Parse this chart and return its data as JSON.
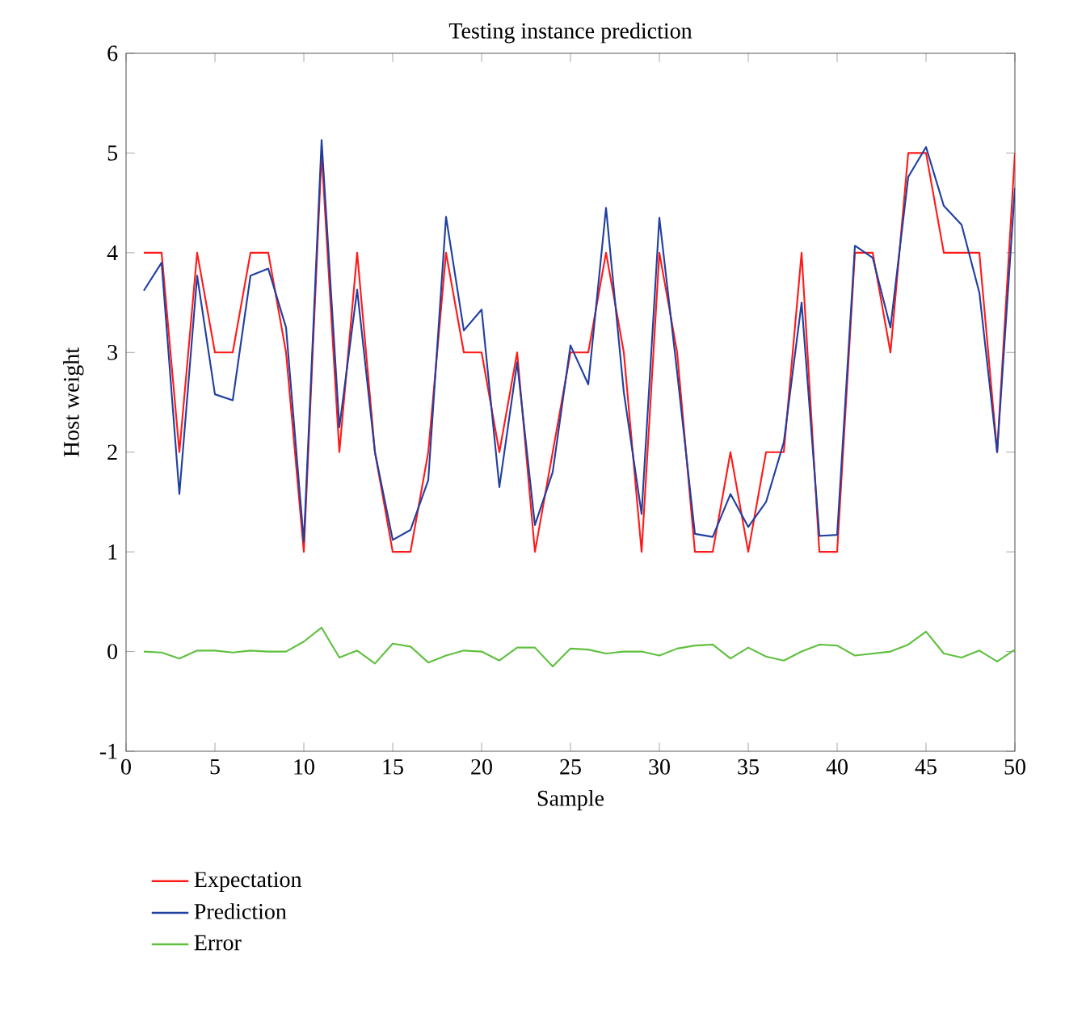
{
  "chart_data": {
    "type": "line",
    "title": "Testing instance prediction",
    "xlabel": "Sample",
    "ylabel": "Host weight",
    "x": [
      1,
      2,
      3,
      4,
      5,
      6,
      7,
      8,
      9,
      10,
      11,
      12,
      13,
      14,
      15,
      16,
      17,
      18,
      19,
      20,
      21,
      22,
      23,
      24,
      25,
      26,
      27,
      28,
      29,
      30,
      31,
      32,
      33,
      34,
      35,
      36,
      37,
      38,
      39,
      40,
      41,
      42,
      43,
      44,
      45,
      46,
      47,
      48,
      49,
      50
    ],
    "series": [
      {
        "name": "Expectation",
        "color": "#ff1a1a",
        "values": [
          4,
          4,
          2,
          4,
          3,
          3,
          4,
          4,
          3,
          1,
          5,
          2,
          4,
          2,
          1,
          1,
          2,
          4,
          3,
          3,
          2,
          3,
          1,
          2,
          3,
          3,
          4,
          3,
          1,
          4,
          3,
          1,
          1,
          2,
          1,
          2,
          2,
          4,
          1,
          1,
          4,
          4,
          3,
          5,
          5,
          4,
          4,
          4,
          2,
          5
        ]
      },
      {
        "name": "Prediction",
        "color": "#2040a0",
        "values": [
          3.62,
          3.9,
          1.58,
          3.77,
          2.58,
          2.52,
          3.77,
          3.84,
          3.25,
          1.1,
          5.13,
          2.25,
          3.63,
          2.0,
          1.12,
          1.22,
          1.72,
          4.36,
          3.22,
          3.43,
          1.65,
          2.9,
          1.27,
          1.8,
          3.07,
          2.68,
          4.45,
          2.6,
          1.38,
          4.35,
          2.8,
          1.18,
          1.15,
          1.58,
          1.25,
          1.5,
          2.1,
          3.5,
          1.16,
          1.17,
          4.07,
          3.95,
          3.25,
          4.76,
          5.06,
          4.47,
          4.28,
          3.6,
          2.0,
          4.65
        ]
      },
      {
        "name": "Error",
        "color": "#60c040",
        "values": [
          0,
          -0.01,
          -0.07,
          0.01,
          0.01,
          -0.01,
          0.01,
          0,
          0,
          0.1,
          0.24,
          -0.06,
          0.01,
          -0.12,
          0.08,
          0.05,
          -0.11,
          -0.04,
          0.01,
          0,
          -0.09,
          0.04,
          0.04,
          -0.15,
          0.03,
          0.02,
          -0.02,
          0,
          0,
          -0.04,
          0.03,
          0.06,
          0.07,
          -0.07,
          0.04,
          -0.05,
          -0.09,
          0,
          0.07,
          0.06,
          -0.04,
          -0.02,
          0,
          0.07,
          0.2,
          -0.02,
          -0.06,
          0.01,
          -0.1,
          0.02
        ]
      }
    ],
    "xlim": [
      0,
      50
    ],
    "xticks": [
      0,
      5,
      10,
      15,
      20,
      25,
      30,
      35,
      40,
      45,
      50
    ],
    "ylim": [
      -1,
      6
    ],
    "yticks": [
      -1,
      0,
      1,
      2,
      3,
      4,
      5,
      6
    ],
    "legend": "bottom left"
  }
}
